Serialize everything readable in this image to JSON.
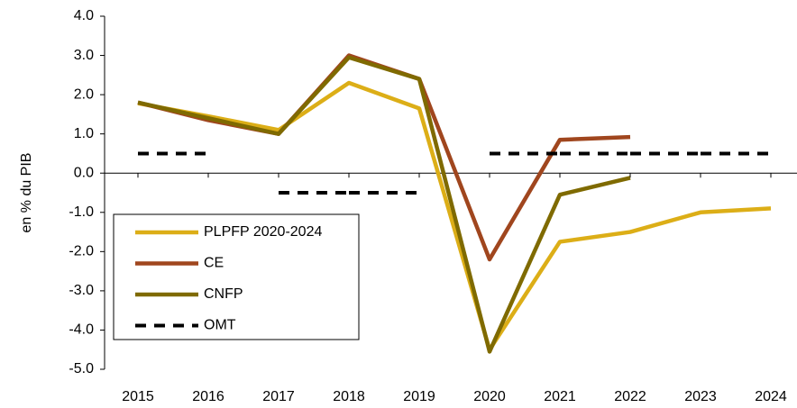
{
  "chart_data": {
    "type": "line",
    "y_label": "en % du PIB",
    "categories": [
      "2015",
      "2016",
      "2017",
      "2018",
      "2019",
      "2020",
      "2021",
      "2022",
      "2023",
      "2024"
    ],
    "series": [
      {
        "name": "PLPFP 2020-2024",
        "color": "#dcae17",
        "values": [
          1.78,
          1.45,
          1.1,
          2.3,
          1.65,
          -4.5,
          -1.75,
          -1.5,
          -1.0,
          -0.9
        ]
      },
      {
        "name": "CE",
        "color": "#a0461e",
        "values": [
          1.8,
          1.35,
          1.0,
          3.0,
          2.4,
          -2.2,
          0.85,
          0.92,
          null,
          null
        ]
      },
      {
        "name": "CNFP",
        "color": "#7f6a00",
        "values": [
          1.8,
          1.4,
          1.0,
          2.95,
          2.4,
          -4.55,
          -0.55,
          -0.12,
          null,
          null
        ]
      },
      {
        "name": "OMT",
        "color": "#000000",
        "style": "dashed-steps",
        "values": [
          0.5,
          0.5,
          -0.5,
          -0.5,
          -0.5,
          0.5,
          0.5,
          0.5,
          0.5,
          0.5
        ]
      }
    ],
    "ylim": [
      -5,
      4
    ],
    "yticks": [
      {
        "value": -5,
        "label": "-5.0"
      },
      {
        "value": -4,
        "label": "-4.0"
      },
      {
        "value": -3,
        "label": "-3.0"
      },
      {
        "value": -2,
        "label": "-2.0"
      },
      {
        "value": -1,
        "label": "-1.0"
      },
      {
        "value": 0,
        "label": "0.0"
      },
      {
        "value": 1,
        "label": "1.0"
      },
      {
        "value": 2,
        "label": "2.0"
      },
      {
        "value": 3,
        "label": "3.0"
      },
      {
        "value": 4,
        "label": "4.0"
      }
    ],
    "legend": "lower-left"
  }
}
